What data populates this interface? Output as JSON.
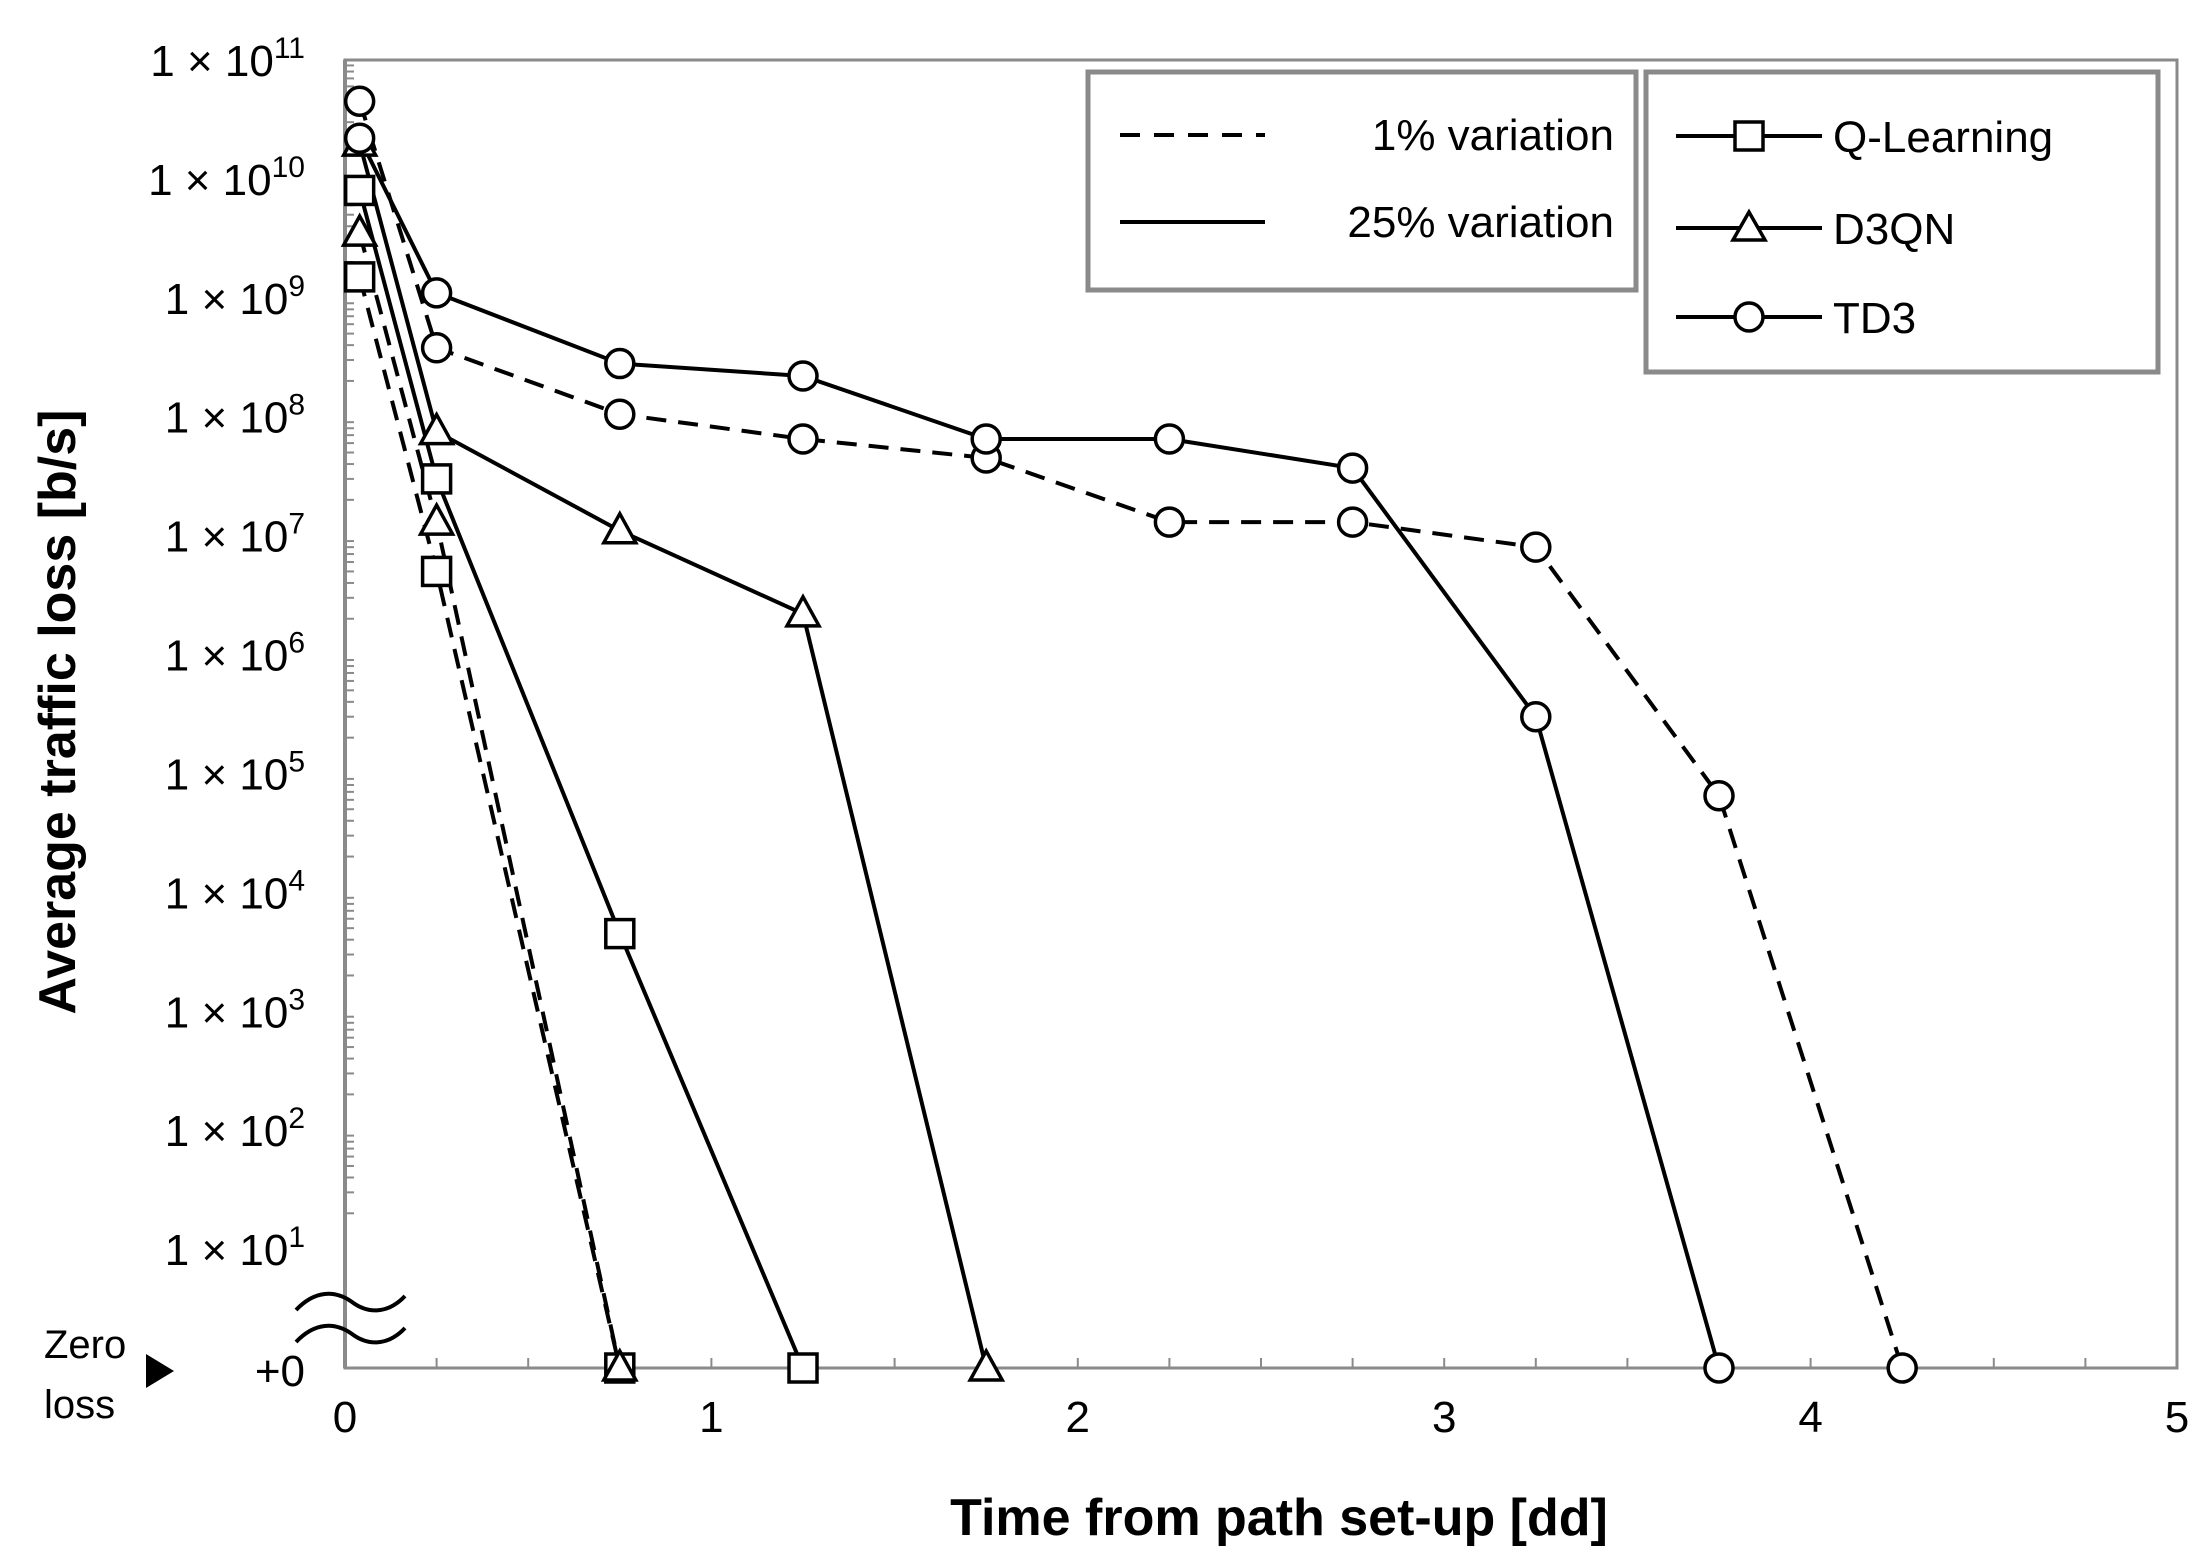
{
  "chart_data": {
    "type": "line",
    "title": "",
    "xlabel": "Time from path set-up [dd]",
    "ylabel": "Average traffic loss [b/s]",
    "y_scale": "log",
    "xlim": [
      0,
      5
    ],
    "ylim": [
      0,
      11
    ],
    "x_ticks": [
      "0",
      "1",
      "2",
      "3",
      "4",
      "5"
    ],
    "y_ticks": [
      {
        "base": "1 × 10",
        "exp": "11",
        "value": 100000000000.0
      },
      {
        "base": "1 × 10",
        "exp": "10",
        "value": 10000000000.0
      },
      {
        "base": "1 × 10",
        "exp": "9",
        "value": 1000000000.0
      },
      {
        "base": "1 × 10",
        "exp": "8",
        "value": 100000000.0
      },
      {
        "base": "1 × 10",
        "exp": "7",
        "value": 10000000.0
      },
      {
        "base": "1 × 10",
        "exp": "6",
        "value": 1000000.0
      },
      {
        "base": "1 × 10",
        "exp": "5",
        "value": 100000.0
      },
      {
        "base": "1 × 10",
        "exp": "4",
        "value": 10000.0
      },
      {
        "base": "1 × 10",
        "exp": "3",
        "value": 1000.0
      },
      {
        "base": "1 × 10",
        "exp": "2",
        "value": 100.0
      },
      {
        "base": "1 × 10",
        "exp": "1",
        "value": 10.0
      }
    ],
    "zero_label": "+0",
    "zero_annotation": [
      "Zero",
      "loss"
    ],
    "legend_variation": [
      {
        "label": "1% variation",
        "dash": "dashed"
      },
      {
        "label": "25% variation",
        "dash": "solid"
      }
    ],
    "legend_methods": [
      {
        "label": "Q-Learning",
        "marker": "square"
      },
      {
        "label": "D3QN",
        "marker": "triangle"
      },
      {
        "label": "TD3",
        "marker": "circle"
      }
    ],
    "series": [
      {
        "name": "Q-Learning",
        "variation": "1%",
        "marker": "square",
        "dash": "dashed",
        "x": [
          0.04,
          0.25,
          0.75
        ],
        "y": [
          1500000000.0,
          5000000.0,
          0
        ]
      },
      {
        "name": "Q-Learning",
        "variation": "25%",
        "marker": "square",
        "dash": "solid",
        "x": [
          0.04,
          0.25,
          0.75,
          1.25
        ],
        "y": [
          8000000000.0,
          30000000.0,
          4500.0,
          0
        ]
      },
      {
        "name": "D3QN",
        "variation": "1%",
        "marker": "triangle",
        "dash": "dashed",
        "x": [
          0.04,
          0.25,
          0.75
        ],
        "y": [
          3500000000.0,
          13000000.0,
          0
        ]
      },
      {
        "name": "D3QN",
        "variation": "25%",
        "marker": "triangle",
        "dash": "solid",
        "x": [
          0.04,
          0.25,
          0.75,
          1.25,
          1.75
        ],
        "y": [
          20000000000.0,
          75000000.0,
          11000000.0,
          2200000.0,
          0
        ]
      },
      {
        "name": "TD3",
        "variation": "1%",
        "marker": "circle",
        "dash": "dashed",
        "x": [
          0.04,
          0.25,
          0.75,
          1.25,
          1.75,
          2.25,
          2.75,
          3.25,
          3.75,
          4.25
        ],
        "y": [
          45000000000.0,
          380000000.0,
          105000000.0,
          65000000.0,
          45000000.0,
          13000000.0,
          13000000.0,
          8000000.0,
          65000.0,
          0
        ]
      },
      {
        "name": "TD3",
        "variation": "25%",
        "marker": "circle",
        "dash": "solid",
        "x": [
          0.04,
          0.25,
          0.75,
          1.25,
          1.75,
          2.25,
          2.75,
          3.25,
          3.75
        ],
        "y": [
          22000000000.0,
          1100000000.0,
          280000000.0,
          220000000.0,
          65000000.0,
          65000000.0,
          37000000.0,
          300000.0,
          0
        ]
      }
    ]
  }
}
